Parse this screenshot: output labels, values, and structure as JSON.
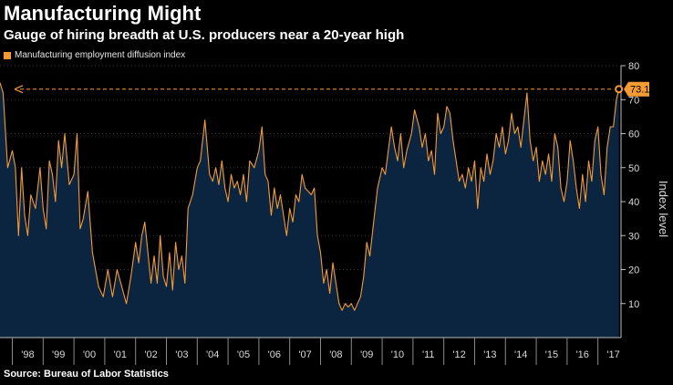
{
  "header": {
    "title": "Manufacturing Might",
    "subtitle": "Gauge of hiring breadth at U.S. producers near a 20-year high"
  },
  "footer": {
    "source": "Source: Bureau of Labor Statistics"
  },
  "colors": {
    "background": "#000000",
    "area_fill": "#0b2440",
    "line": "#f59b34",
    "grid": "#3a3a3a"
  },
  "chart_data": {
    "type": "area",
    "title": "Manufacturing Might",
    "subtitle": "Gauge of hiring breadth at U.S. producers near a 20-year high",
    "series_name": "Manufacturing employment diffusion index",
    "ylabel": "Index level",
    "xlabel": "",
    "ylim": [
      0,
      80
    ],
    "yticks": [
      10,
      20,
      30,
      40,
      50,
      60,
      70,
      80
    ],
    "xlim": [
      1997.6,
      2017.75
    ],
    "xtick_labels": [
      "'98",
      "'99",
      "'00",
      "'01",
      "'02",
      "'03",
      "'04",
      "'05",
      "'06",
      "'07",
      "'08",
      "'09",
      "'10",
      "'11",
      "'12",
      "'13",
      "'14",
      "'15",
      "'16",
      "'17"
    ],
    "xtick_years": [
      1998,
      1999,
      2000,
      2001,
      2002,
      2003,
      2004,
      2005,
      2006,
      2007,
      2008,
      2009,
      2010,
      2011,
      2012,
      2013,
      2014,
      2015,
      2016,
      2017
    ],
    "points": [
      [
        1997.6,
        75
      ],
      [
        1997.7,
        72
      ],
      [
        1997.85,
        50
      ],
      [
        1998.0,
        55
      ],
      [
        1998.1,
        50
      ],
      [
        1998.2,
        30
      ],
      [
        1998.3,
        50
      ],
      [
        1998.4,
        36
      ],
      [
        1998.5,
        30
      ],
      [
        1998.6,
        42
      ],
      [
        1998.75,
        38
      ],
      [
        1998.9,
        50
      ],
      [
        1999.0,
        38
      ],
      [
        1999.1,
        32
      ],
      [
        1999.2,
        52
      ],
      [
        1999.3,
        48
      ],
      [
        1999.4,
        40
      ],
      [
        1999.5,
        58
      ],
      [
        1999.6,
        50
      ],
      [
        1999.7,
        60
      ],
      [
        1999.85,
        45
      ],
      [
        2000.0,
        48
      ],
      [
        2000.1,
        60
      ],
      [
        2000.2,
        32
      ],
      [
        2000.3,
        35
      ],
      [
        2000.45,
        43
      ],
      [
        2000.6,
        25
      ],
      [
        2000.8,
        15
      ],
      [
        2000.95,
        12
      ],
      [
        2001.1,
        20
      ],
      [
        2001.25,
        12
      ],
      [
        2001.4,
        20
      ],
      [
        2001.55,
        15
      ],
      [
        2001.7,
        10
      ],
      [
        2001.85,
        18
      ],
      [
        2002.0,
        28
      ],
      [
        2002.1,
        22
      ],
      [
        2002.2,
        30
      ],
      [
        2002.3,
        34
      ],
      [
        2002.4,
        25
      ],
      [
        2002.5,
        16
      ],
      [
        2002.6,
        24
      ],
      [
        2002.7,
        16
      ],
      [
        2002.8,
        30
      ],
      [
        2002.9,
        18
      ],
      [
        2003.0,
        15
      ],
      [
        2003.1,
        25
      ],
      [
        2003.2,
        14
      ],
      [
        2003.3,
        28
      ],
      [
        2003.4,
        20
      ],
      [
        2003.5,
        24
      ],
      [
        2003.6,
        16
      ],
      [
        2003.7,
        38
      ],
      [
        2003.85,
        42
      ],
      [
        2004.0,
        50
      ],
      [
        2004.1,
        52
      ],
      [
        2004.25,
        64
      ],
      [
        2004.4,
        48
      ],
      [
        2004.5,
        46
      ],
      [
        2004.6,
        50
      ],
      [
        2004.7,
        45
      ],
      [
        2004.8,
        52
      ],
      [
        2004.9,
        44
      ],
      [
        2005.0,
        40
      ],
      [
        2005.1,
        48
      ],
      [
        2005.2,
        44
      ],
      [
        2005.3,
        46
      ],
      [
        2005.4,
        42
      ],
      [
        2005.5,
        48
      ],
      [
        2005.6,
        40
      ],
      [
        2005.7,
        52
      ],
      [
        2005.85,
        50
      ],
      [
        2006.0,
        55
      ],
      [
        2006.1,
        62
      ],
      [
        2006.2,
        48
      ],
      [
        2006.3,
        46
      ],
      [
        2006.4,
        36
      ],
      [
        2006.5,
        44
      ],
      [
        2006.6,
        38
      ],
      [
        2006.7,
        42
      ],
      [
        2006.8,
        36
      ],
      [
        2006.9,
        30
      ],
      [
        2007.0,
        38
      ],
      [
        2007.1,
        34
      ],
      [
        2007.2,
        42
      ],
      [
        2007.3,
        40
      ],
      [
        2007.4,
        48
      ],
      [
        2007.5,
        44
      ],
      [
        2007.6,
        43
      ],
      [
        2007.7,
        42
      ],
      [
        2007.8,
        44
      ],
      [
        2007.9,
        30
      ],
      [
        2008.0,
        25
      ],
      [
        2008.1,
        16
      ],
      [
        2008.2,
        20
      ],
      [
        2008.3,
        13
      ],
      [
        2008.4,
        22
      ],
      [
        2008.5,
        16
      ],
      [
        2008.6,
        10
      ],
      [
        2008.7,
        8
      ],
      [
        2008.8,
        10
      ],
      [
        2008.9,
        9
      ],
      [
        2009.0,
        10
      ],
      [
        2009.1,
        8
      ],
      [
        2009.2,
        10
      ],
      [
        2009.3,
        12
      ],
      [
        2009.4,
        18
      ],
      [
        2009.5,
        28
      ],
      [
        2009.6,
        24
      ],
      [
        2009.7,
        32
      ],
      [
        2009.85,
        44
      ],
      [
        2010.0,
        50
      ],
      [
        2010.1,
        48
      ],
      [
        2010.2,
        55
      ],
      [
        2010.3,
        62
      ],
      [
        2010.4,
        56
      ],
      [
        2010.5,
        52
      ],
      [
        2010.6,
        60
      ],
      [
        2010.7,
        50
      ],
      [
        2010.8,
        55
      ],
      [
        2010.95,
        60
      ],
      [
        2011.05,
        67
      ],
      [
        2011.2,
        62
      ],
      [
        2011.3,
        56
      ],
      [
        2011.4,
        60
      ],
      [
        2011.5,
        52
      ],
      [
        2011.6,
        55
      ],
      [
        2011.7,
        48
      ],
      [
        2011.8,
        66
      ],
      [
        2011.9,
        60
      ],
      [
        2012.0,
        62
      ],
      [
        2012.1,
        68
      ],
      [
        2012.2,
        66
      ],
      [
        2012.3,
        58
      ],
      [
        2012.4,
        52
      ],
      [
        2012.5,
        46
      ],
      [
        2012.6,
        48
      ],
      [
        2012.7,
        44
      ],
      [
        2012.8,
        50
      ],
      [
        2012.9,
        46
      ],
      [
        2013.0,
        52
      ],
      [
        2013.1,
        38
      ],
      [
        2013.2,
        50
      ],
      [
        2013.3,
        46
      ],
      [
        2013.4,
        54
      ],
      [
        2013.5,
        48
      ],
      [
        2013.6,
        52
      ],
      [
        2013.7,
        60
      ],
      [
        2013.8,
        56
      ],
      [
        2013.9,
        62
      ],
      [
        2014.0,
        54
      ],
      [
        2014.1,
        58
      ],
      [
        2014.2,
        66
      ],
      [
        2014.3,
        60
      ],
      [
        2014.4,
        62
      ],
      [
        2014.5,
        56
      ],
      [
        2014.6,
        64
      ],
      [
        2014.7,
        72
      ],
      [
        2014.8,
        58
      ],
      [
        2014.9,
        52
      ],
      [
        2015.0,
        56
      ],
      [
        2015.1,
        46
      ],
      [
        2015.2,
        52
      ],
      [
        2015.3,
        48
      ],
      [
        2015.4,
        54
      ],
      [
        2015.5,
        46
      ],
      [
        2015.6,
        60
      ],
      [
        2015.7,
        56
      ],
      [
        2015.8,
        44
      ],
      [
        2015.9,
        40
      ],
      [
        2016.0,
        46
      ],
      [
        2016.1,
        58
      ],
      [
        2016.2,
        52
      ],
      [
        2016.3,
        44
      ],
      [
        2016.4,
        38
      ],
      [
        2016.5,
        48
      ],
      [
        2016.6,
        40
      ],
      [
        2016.7,
        52
      ],
      [
        2016.8,
        46
      ],
      [
        2016.9,
        58
      ],
      [
        2017.0,
        62
      ],
      [
        2017.1,
        48
      ],
      [
        2017.2,
        42
      ],
      [
        2017.3,
        56
      ],
      [
        2017.4,
        62
      ],
      [
        2017.5,
        62
      ],
      [
        2017.6,
        70
      ],
      [
        2017.68,
        73.1
      ]
    ],
    "annotation": {
      "label": "73.1",
      "value": 73.1
    }
  }
}
